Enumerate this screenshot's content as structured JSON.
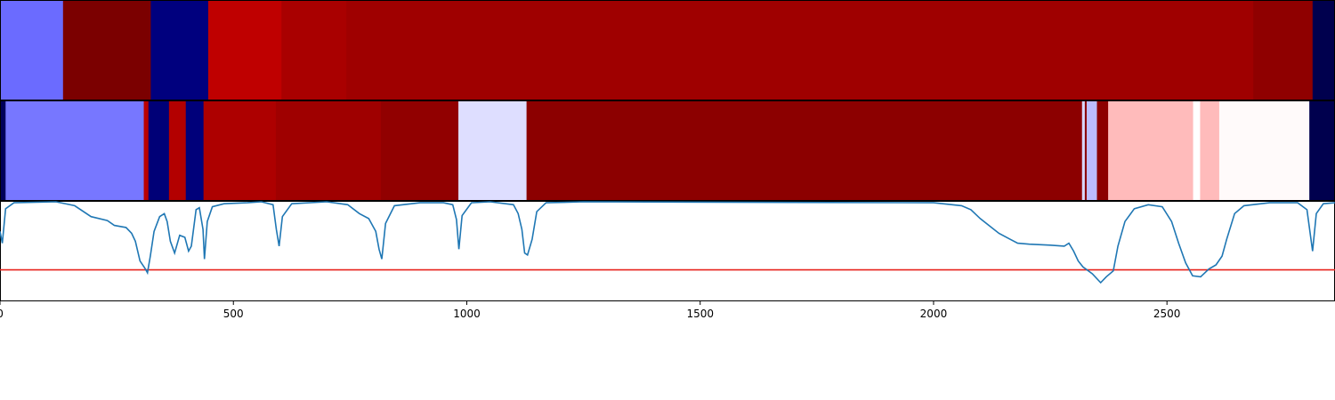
{
  "chart_data": {
    "type": "heatmap",
    "title": "",
    "xlabel": "",
    "ylabel": "",
    "xlim": [
      0,
      2860
    ],
    "x_ticks": [
      0,
      500,
      1000,
      1500,
      2000,
      2500
    ],
    "x_tick_labels": [
      "0",
      "500",
      "1000",
      "1500",
      "2000",
      "2500"
    ],
    "rows": [
      {
        "name": "segment-track-1",
        "segments": [
          {
            "start": 0,
            "end": 135,
            "color": "#6b6bff"
          },
          {
            "start": 135,
            "end": 323,
            "color": "#7b0000"
          },
          {
            "start": 323,
            "end": 446,
            "color": "#00007e"
          },
          {
            "start": 446,
            "end": 603,
            "color": "#bf0000"
          },
          {
            "start": 603,
            "end": 742,
            "color": "#a90000"
          },
          {
            "start": 742,
            "end": 2685,
            "color": "#9f0000"
          },
          {
            "start": 2685,
            "end": 2812,
            "color": "#8f0000"
          },
          {
            "start": 2812,
            "end": 2860,
            "color": "#00004e"
          }
        ]
      },
      {
        "name": "segment-track-2",
        "segments": [
          {
            "start": 0,
            "end": 12,
            "color": "#00005a"
          },
          {
            "start": 12,
            "end": 308,
            "color": "#7777ff"
          },
          {
            "start": 308,
            "end": 318,
            "color": "#bb0000"
          },
          {
            "start": 318,
            "end": 362,
            "color": "#000077"
          },
          {
            "start": 362,
            "end": 398,
            "color": "#b30000"
          },
          {
            "start": 398,
            "end": 436,
            "color": "#00007a"
          },
          {
            "start": 436,
            "end": 591,
            "color": "#ad0000"
          },
          {
            "start": 591,
            "end": 816,
            "color": "#9f0000"
          },
          {
            "start": 816,
            "end": 982,
            "color": "#910000"
          },
          {
            "start": 982,
            "end": 1128,
            "color": "#dedeff"
          },
          {
            "start": 1128,
            "end": 2318,
            "color": "#8c0000"
          },
          {
            "start": 2318,
            "end": 2324,
            "color": "#d8d8ff"
          },
          {
            "start": 2324,
            "end": 2328,
            "color": "#8c0000"
          },
          {
            "start": 2328,
            "end": 2350,
            "color": "#bcbcff"
          },
          {
            "start": 2350,
            "end": 2374,
            "color": "#8c0000"
          },
          {
            "start": 2374,
            "end": 2556,
            "color": "#ffbbbb"
          },
          {
            "start": 2556,
            "end": 2571,
            "color": "#ffffff"
          },
          {
            "start": 2571,
            "end": 2612,
            "color": "#ffbbbb"
          },
          {
            "start": 2612,
            "end": 2805,
            "color": "#fffafa"
          },
          {
            "start": 2805,
            "end": 2860,
            "color": "#00004e"
          }
        ]
      }
    ],
    "line_panel": {
      "ylim": [
        0,
        1
      ],
      "line_color": "#1f77b4",
      "threshold": 0.31,
      "threshold_color": "#e8231c",
      "points": [
        [
          0,
          0.7
        ],
        [
          5,
          0.58
        ],
        [
          12,
          0.93
        ],
        [
          30,
          0.99
        ],
        [
          120,
          1.0
        ],
        [
          160,
          0.96
        ],
        [
          195,
          0.85
        ],
        [
          230,
          0.81
        ],
        [
          245,
          0.76
        ],
        [
          270,
          0.74
        ],
        [
          282,
          0.68
        ],
        [
          290,
          0.6
        ],
        [
          300,
          0.4
        ],
        [
          310,
          0.33
        ],
        [
          316,
          0.28
        ],
        [
          322,
          0.45
        ],
        [
          330,
          0.7
        ],
        [
          342,
          0.85
        ],
        [
          352,
          0.88
        ],
        [
          358,
          0.8
        ],
        [
          365,
          0.6
        ],
        [
          374,
          0.48
        ],
        [
          385,
          0.66
        ],
        [
          396,
          0.64
        ],
        [
          404,
          0.5
        ],
        [
          410,
          0.55
        ],
        [
          420,
          0.92
        ],
        [
          427,
          0.94
        ],
        [
          435,
          0.72
        ],
        [
          438,
          0.42
        ],
        [
          444,
          0.8
        ],
        [
          455,
          0.95
        ],
        [
          480,
          0.98
        ],
        [
          530,
          0.99
        ],
        [
          560,
          1.0
        ],
        [
          585,
          0.97
        ],
        [
          592,
          0.72
        ],
        [
          598,
          0.55
        ],
        [
          605,
          0.85
        ],
        [
          625,
          0.98
        ],
        [
          700,
          1.0
        ],
        [
          745,
          0.97
        ],
        [
          770,
          0.88
        ],
        [
          790,
          0.83
        ],
        [
          805,
          0.7
        ],
        [
          812,
          0.52
        ],
        [
          818,
          0.42
        ],
        [
          826,
          0.78
        ],
        [
          845,
          0.96
        ],
        [
          900,
          0.99
        ],
        [
          950,
          0.99
        ],
        [
          970,
          0.97
        ],
        [
          978,
          0.82
        ],
        [
          983,
          0.52
        ],
        [
          990,
          0.86
        ],
        [
          1010,
          0.99
        ],
        [
          1050,
          1.0
        ],
        [
          1100,
          0.97
        ],
        [
          1110,
          0.88
        ],
        [
          1118,
          0.72
        ],
        [
          1124,
          0.48
        ],
        [
          1130,
          0.46
        ],
        [
          1140,
          0.62
        ],
        [
          1150,
          0.9
        ],
        [
          1170,
          0.99
        ],
        [
          1250,
          1.0
        ],
        [
          2000,
          0.99
        ],
        [
          2060,
          0.96
        ],
        [
          2080,
          0.92
        ],
        [
          2100,
          0.83
        ],
        [
          2140,
          0.68
        ],
        [
          2160,
          0.63
        ],
        [
          2180,
          0.58
        ],
        [
          2205,
          0.57
        ],
        [
          2250,
          0.56
        ],
        [
          2280,
          0.55
        ],
        [
          2290,
          0.58
        ],
        [
          2300,
          0.5
        ],
        [
          2310,
          0.4
        ],
        [
          2320,
          0.34
        ],
        [
          2340,
          0.27
        ],
        [
          2358,
          0.18
        ],
        [
          2370,
          0.24
        ],
        [
          2385,
          0.3
        ],
        [
          2395,
          0.55
        ],
        [
          2410,
          0.8
        ],
        [
          2430,
          0.93
        ],
        [
          2460,
          0.97
        ],
        [
          2490,
          0.95
        ],
        [
          2510,
          0.8
        ],
        [
          2525,
          0.58
        ],
        [
          2540,
          0.38
        ],
        [
          2555,
          0.25
        ],
        [
          2572,
          0.24
        ],
        [
          2590,
          0.32
        ],
        [
          2605,
          0.36
        ],
        [
          2618,
          0.45
        ],
        [
          2628,
          0.62
        ],
        [
          2645,
          0.88
        ],
        [
          2665,
          0.96
        ],
        [
          2720,
          0.99
        ],
        [
          2780,
          0.99
        ],
        [
          2800,
          0.92
        ],
        [
          2812,
          0.5
        ],
        [
          2820,
          0.88
        ],
        [
          2835,
          0.98
        ],
        [
          2860,
          0.99
        ]
      ]
    }
  }
}
